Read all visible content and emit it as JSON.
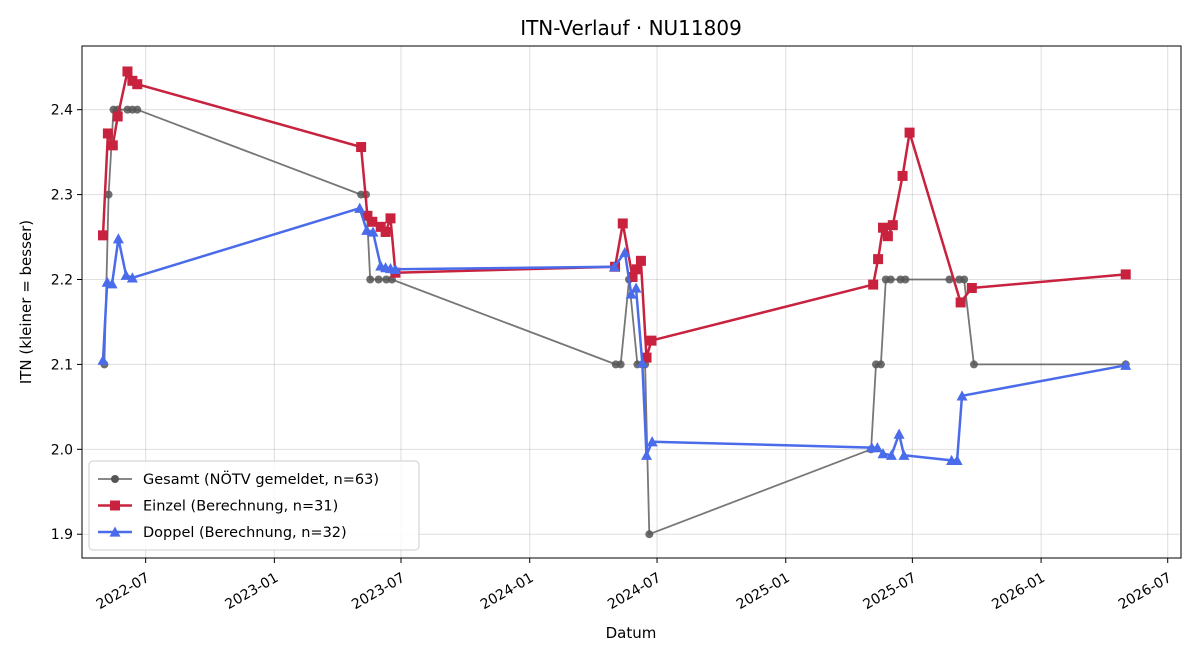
{
  "chart_data": {
    "type": "line",
    "title": "ITN-Verlauf · NU11809",
    "xlabel": "Datum",
    "ylabel": "ITN  (kleiner = besser)",
    "x_axis": "date",
    "xlim": [
      "2022-04-01",
      "2026-07-20"
    ],
    "ylim": [
      1.872,
      2.475
    ],
    "x_ticks": [
      {
        "date": "2022-07-01",
        "label": "2022-07"
      },
      {
        "date": "2023-01-01",
        "label": "2023-01"
      },
      {
        "date": "2023-07-01",
        "label": "2023-07"
      },
      {
        "date": "2024-01-01",
        "label": "2024-01"
      },
      {
        "date": "2024-07-01",
        "label": "2024-07"
      },
      {
        "date": "2025-01-01",
        "label": "2025-01"
      },
      {
        "date": "2025-07-01",
        "label": "2025-07"
      },
      {
        "date": "2026-01-01",
        "label": "2026-01"
      },
      {
        "date": "2026-07-01",
        "label": "2026-07"
      }
    ],
    "y_ticks": [
      {
        "value": 1.9,
        "label": "1.9"
      },
      {
        "value": 2.0,
        "label": "2.0"
      },
      {
        "value": 2.1,
        "label": "2.1"
      },
      {
        "value": 2.2,
        "label": "2.2"
      },
      {
        "value": 2.3,
        "label": "2.3"
      },
      {
        "value": 2.4,
        "label": "2.4"
      }
    ],
    "grid": true,
    "legend_position": "bottom-left",
    "series": [
      {
        "name": "Gesamt (NÖTV gemeldet, n=63)",
        "color": "#555555",
        "marker": "circle",
        "points": [
          [
            "2022-05-03",
            2.1
          ],
          [
            "2022-05-09",
            2.3
          ],
          [
            "2022-05-16",
            2.4
          ],
          [
            "2022-05-22",
            2.4
          ],
          [
            "2022-06-05",
            2.4
          ],
          [
            "2022-06-12",
            2.4
          ],
          [
            "2022-06-19",
            2.4
          ],
          [
            "2023-05-05",
            2.3
          ],
          [
            "2023-05-12",
            2.3
          ],
          [
            "2023-05-18",
            2.2
          ],
          [
            "2023-05-30",
            2.2
          ],
          [
            "2023-06-10",
            2.2
          ],
          [
            "2023-06-18",
            2.2
          ],
          [
            "2024-05-03",
            2.1
          ],
          [
            "2024-05-10",
            2.1
          ],
          [
            "2024-05-22",
            2.2
          ],
          [
            "2024-06-03",
            2.1
          ],
          [
            "2024-06-10",
            2.1
          ],
          [
            "2024-06-14",
            2.1
          ],
          [
            "2024-06-20",
            1.9
          ],
          [
            "2025-05-03",
            2.0
          ],
          [
            "2025-05-10",
            2.1
          ],
          [
            "2025-05-17",
            2.1
          ],
          [
            "2025-05-24",
            2.2
          ],
          [
            "2025-05-31",
            2.2
          ],
          [
            "2025-06-14",
            2.2
          ],
          [
            "2025-06-21",
            2.2
          ],
          [
            "2025-08-23",
            2.2
          ],
          [
            "2025-09-06",
            2.2
          ],
          [
            "2025-09-13",
            2.2
          ],
          [
            "2025-09-27",
            2.1
          ],
          [
            "2026-05-02",
            2.1
          ]
        ]
      },
      {
        "name": "Einzel (Berechnung, n=31)",
        "color": "#c8223e",
        "marker": "square",
        "points": [
          [
            "2022-05-01",
            2.252
          ],
          [
            "2022-05-08",
            2.372
          ],
          [
            "2022-05-15",
            2.358
          ],
          [
            "2022-05-22",
            2.392
          ],
          [
            "2022-06-05",
            2.445
          ],
          [
            "2022-06-12",
            2.434
          ],
          [
            "2022-06-19",
            2.43
          ],
          [
            "2023-05-05",
            2.356
          ],
          [
            "2023-05-14",
            2.275
          ],
          [
            "2023-05-21",
            2.268
          ],
          [
            "2023-06-02",
            2.262
          ],
          [
            "2023-06-09",
            2.256
          ],
          [
            "2023-06-16",
            2.272
          ],
          [
            "2023-06-23",
            2.208
          ],
          [
            "2024-05-02",
            2.215
          ],
          [
            "2024-05-13",
            2.266
          ],
          [
            "2024-05-27",
            2.203
          ],
          [
            "2024-06-02",
            2.212
          ],
          [
            "2024-06-08",
            2.222
          ],
          [
            "2024-06-16",
            2.108
          ],
          [
            "2024-06-23",
            2.128
          ],
          [
            "2025-05-06",
            2.194
          ],
          [
            "2025-05-13",
            2.224
          ],
          [
            "2025-05-20",
            2.261
          ],
          [
            "2025-05-27",
            2.251
          ],
          [
            "2025-06-03",
            2.264
          ],
          [
            "2025-06-17",
            2.322
          ],
          [
            "2025-06-27",
            2.373
          ],
          [
            "2025-09-08",
            2.173
          ],
          [
            "2025-09-24",
            2.19
          ],
          [
            "2026-05-02",
            2.206
          ]
        ]
      },
      {
        "name": "Doppel (Berechnung, n=32)",
        "color": "#4a6bea",
        "marker": "triangle",
        "points": [
          [
            "2022-05-01",
            2.105
          ],
          [
            "2022-05-07",
            2.197
          ],
          [
            "2022-05-14",
            2.195
          ],
          [
            "2022-05-23",
            2.248
          ],
          [
            "2022-06-03",
            2.205
          ],
          [
            "2022-06-12",
            2.202
          ],
          [
            "2023-05-03",
            2.284
          ],
          [
            "2023-05-13",
            2.258
          ],
          [
            "2023-05-22",
            2.256
          ],
          [
            "2023-06-02",
            2.216
          ],
          [
            "2023-06-09",
            2.214
          ],
          [
            "2023-06-16",
            2.213
          ],
          [
            "2023-06-23",
            2.212
          ],
          [
            "2024-05-01",
            2.215
          ],
          [
            "2024-05-16",
            2.232
          ],
          [
            "2024-05-25",
            2.183
          ],
          [
            "2024-06-01",
            2.19
          ],
          [
            "2024-06-10",
            2.102
          ],
          [
            "2024-06-16",
            1.993
          ],
          [
            "2024-06-24",
            2.009
          ],
          [
            "2025-05-04",
            2.002
          ],
          [
            "2025-05-12",
            2.002
          ],
          [
            "2025-05-20",
            1.995
          ],
          [
            "2025-06-01",
            1.993
          ],
          [
            "2025-06-12",
            2.018
          ],
          [
            "2025-06-19",
            1.993
          ],
          [
            "2025-08-26",
            1.987
          ],
          [
            "2025-09-03",
            1.987
          ],
          [
            "2025-09-10",
            2.063
          ],
          [
            "2026-05-02",
            2.099
          ]
        ]
      }
    ]
  }
}
